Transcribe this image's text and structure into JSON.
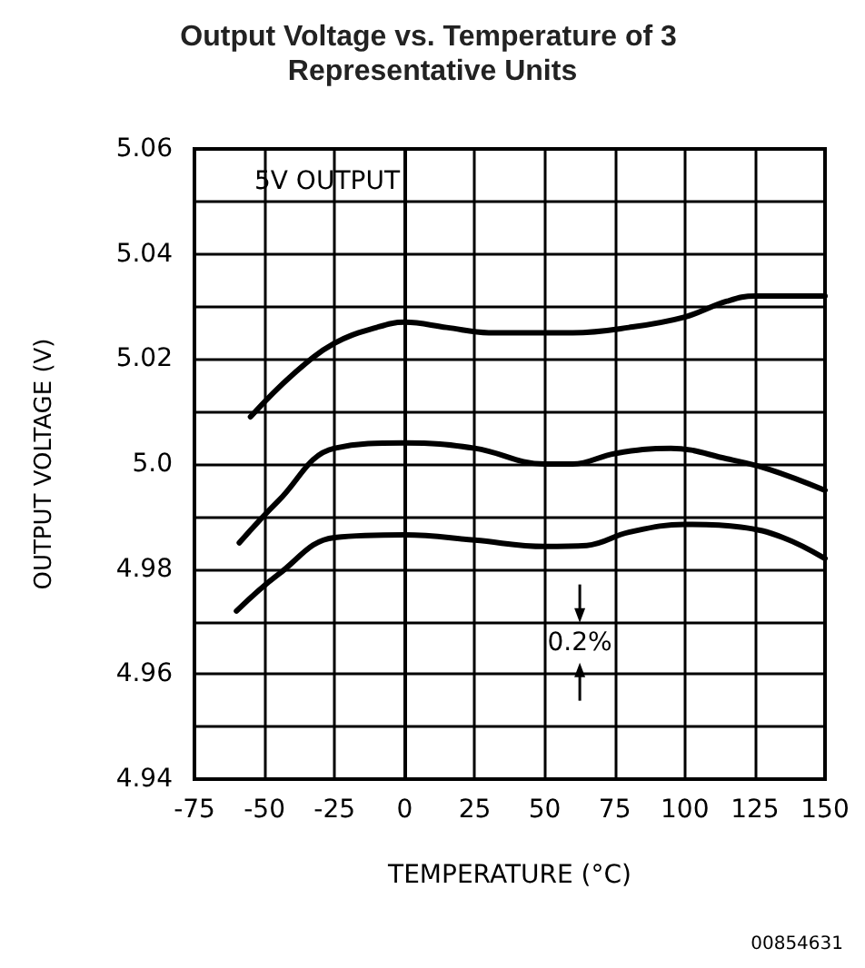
{
  "chart_data": {
    "type": "line",
    "title": "Output Voltage vs. Temperature of 3 Representative Units",
    "xlabel": "TEMPERATURE (°C)",
    "ylabel": "OUTPUT VOLTAGE (V)",
    "xlim": [
      -75,
      150
    ],
    "xticks": [
      -75,
      -50,
      -25,
      0,
      25,
      50,
      75,
      100,
      125,
      150
    ],
    "ylim": [
      4.94,
      5.06
    ],
    "yticks": [
      4.94,
      {
        "value": 4.95,
        "label": null
      },
      4.96,
      {
        "value": 4.97,
        "label": null
      },
      4.98,
      {
        "value": 4.99,
        "label": null
      },
      {
        "value": 5.0,
        "label": "5.0"
      },
      {
        "value": 5.01,
        "label": null
      },
      5.02,
      {
        "value": 5.03,
        "label": null
      },
      5.04,
      {
        "value": 5.05,
        "label": null
      },
      5.06
    ],
    "grid": true,
    "marker": "none",
    "line_style": "solid",
    "series": [
      {
        "color": "#000000",
        "x": [
          -55,
          -40,
          -25,
          -10,
          0,
          15,
          30,
          40,
          60,
          80,
          100,
          115,
          125,
          150
        ],
        "values": [
          5.009,
          5.017,
          5.023,
          5.026,
          5.027,
          5.026,
          5.025,
          5.025,
          5.025,
          5.026,
          5.028,
          5.031,
          5.032,
          5.032
        ]
      },
      {
        "color": "#000000",
        "x": [
          -59,
          -45,
          -25,
          0,
          25,
          50,
          60,
          75,
          95,
          115,
          130,
          150
        ],
        "values": [
          4.985,
          4.993,
          5.003,
          5.004,
          5.003,
          5.0,
          5.0,
          5.002,
          5.003,
          5.001,
          4.999,
          4.995
        ]
      },
      {
        "color": "#000000",
        "x": [
          -60,
          -45,
          -25,
          0,
          25,
          50,
          65,
          80,
          100,
          120,
          135,
          150
        ],
        "values": [
          4.972,
          4.979,
          4.986,
          4.9865,
          4.9855,
          4.9843,
          4.9845,
          4.987,
          4.9885,
          4.988,
          4.986,
          4.982
        ]
      }
    ],
    "annotations": [
      "5V OUTPUT",
      {
        "text": "0.2%",
        "x": 62.5,
        "y": 4.966
      },
      "00854631"
    ]
  }
}
